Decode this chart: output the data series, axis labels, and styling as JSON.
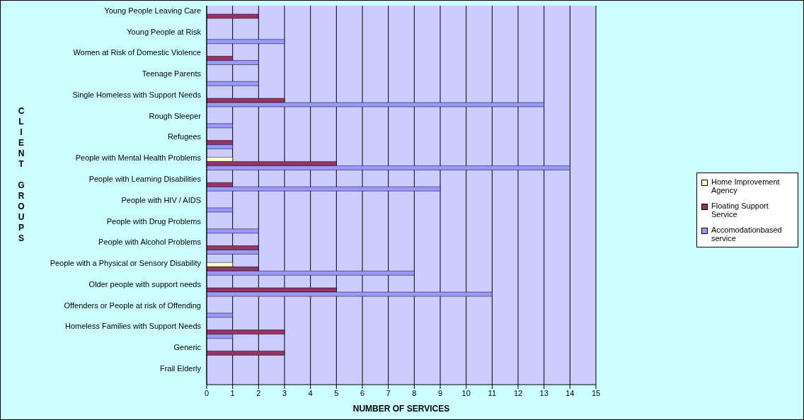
{
  "chart_data": {
    "type": "bar",
    "orientation": "horizontal",
    "xlabel": "NUMBER OF SERVICES",
    "ylabel": "CLIENT GROUPS",
    "categories": [
      "Young People Leaving Care",
      "Young People at Risk",
      "Women at Risk of Domestic Violence",
      "Teenage Parents",
      "Single Homeless with Support Needs",
      "Rough Sleeper",
      "Refugees",
      "People with Mental Health Problems",
      "People with Learning Disabilities",
      "People with HIV / AIDS",
      "People with Drug Problems",
      "People with Alcohol Problems",
      "People with a Physical or Sensory Disability",
      "Older people with support needs",
      "Offenders or People at risk of Offending",
      "Homeless Families with Support Needs",
      "Generic",
      "Frail Elderly"
    ],
    "series": [
      {
        "name": "Home Improvement Agency",
        "color": "#ffffcc",
        "values": [
          0,
          0,
          0,
          0,
          0,
          0,
          0,
          1,
          0,
          0,
          0,
          0,
          1,
          0,
          0,
          0,
          0,
          0
        ]
      },
      {
        "name": "Floating Support Service",
        "color": "#993366",
        "values": [
          2,
          0,
          1,
          0,
          3,
          0,
          1,
          5,
          1,
          0,
          0,
          2,
          2,
          5,
          0,
          3,
          3,
          0
        ]
      },
      {
        "name": "Accomodationbased service",
        "color": "#9999ff",
        "values": [
          0,
          3,
          2,
          2,
          13,
          1,
          1,
          14,
          9,
          1,
          2,
          2,
          8,
          11,
          1,
          1,
          0,
          0
        ]
      }
    ],
    "xlim": [
      0,
      15
    ],
    "xticks": [
      0,
      1,
      2,
      3,
      4,
      5,
      6,
      7,
      8,
      9,
      10,
      11,
      12,
      13,
      14,
      15
    ],
    "grid": "x",
    "legend": "right"
  }
}
